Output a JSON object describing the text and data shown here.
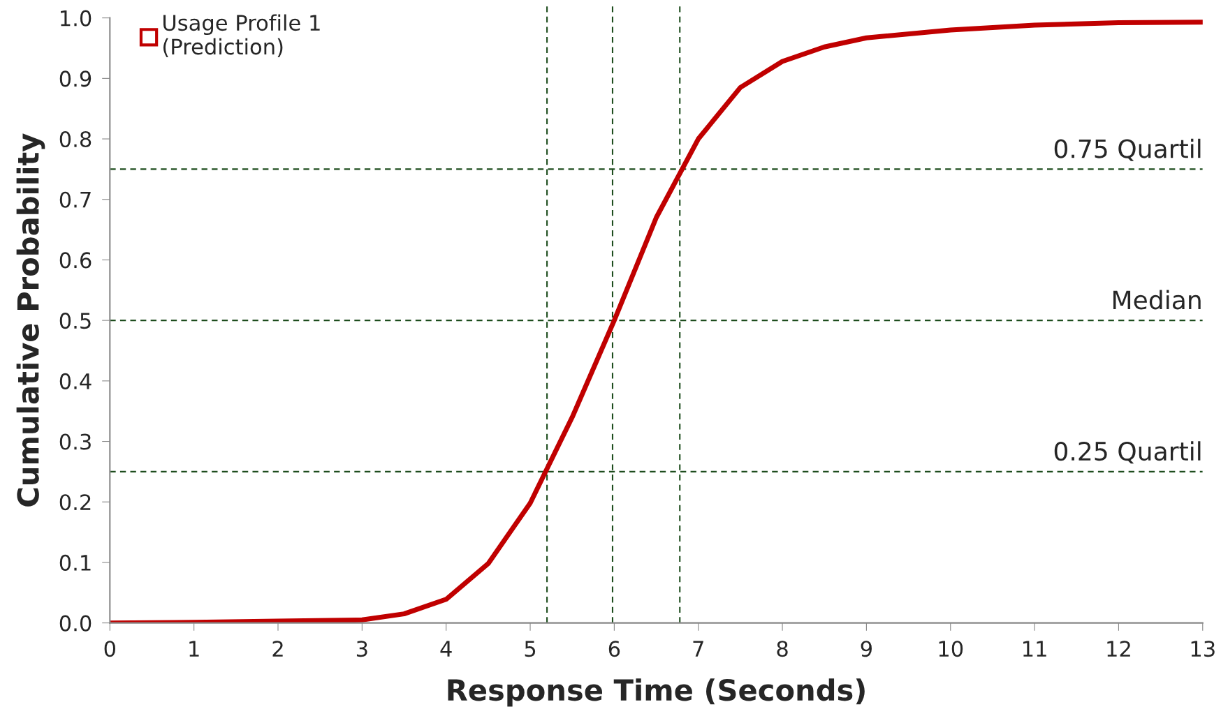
{
  "chart_data": {
    "type": "line",
    "xlabel": "Response Time (Seconds)",
    "ylabel": "Cumulative Probability",
    "x": [
      0,
      1,
      2,
      3,
      3.5,
      4,
      4.5,
      5,
      5.5,
      6,
      6.5,
      7,
      7.5,
      8,
      8.5,
      9,
      10,
      11,
      12,
      13
    ],
    "series": [
      {
        "name": "Usage Profile 1\n(Prediction)",
        "color": "#c00000",
        "values": [
          0,
          0.001,
          0.003,
          0.005,
          0.015,
          0.039,
          0.098,
          0.198,
          0.34,
          0.5,
          0.67,
          0.8,
          0.885,
          0.928,
          0.952,
          0.967,
          0.98,
          0.988,
          0.992,
          0.993
        ]
      }
    ],
    "xlim": [
      0,
      13
    ],
    "xticks": [
      0,
      1,
      2,
      3,
      4,
      5,
      6,
      7,
      8,
      9,
      10,
      11,
      12,
      13
    ],
    "ylim": [
      0,
      1.0
    ],
    "yticks": [
      {
        "value": 0,
        "label": "0.0"
      },
      {
        "value": 0.1,
        "label": "0.1"
      },
      {
        "value": 0.2,
        "label": "0.2"
      },
      {
        "value": 0.3,
        "label": "0.3"
      },
      {
        "value": 0.4,
        "label": "0.4"
      },
      {
        "value": 0.5,
        "label": "0.5"
      },
      {
        "value": 0.6,
        "label": "0.6"
      },
      {
        "value": 0.7,
        "label": "0.7"
      },
      {
        "value": 0.8,
        "label": "0.8"
      },
      {
        "value": 0.9,
        "label": "0.9"
      },
      {
        "value": 1.0,
        "label": "1.0"
      }
    ],
    "ref_lines": [
      {
        "axis": "y",
        "value": 0.75,
        "label": "0.75 Quartil",
        "color": "#1e4d1e",
        "line_style": "dashed"
      },
      {
        "axis": "y",
        "value": 0.5,
        "label": "Median",
        "color": "#1e4d1e",
        "line_style": "dashed"
      },
      {
        "axis": "y",
        "value": 0.25,
        "label": "0.25 Quartil",
        "color": "#1e4d1e",
        "line_style": "dashed"
      },
      {
        "axis": "x",
        "value": 5.2,
        "label": null,
        "color": "#1e4d1e",
        "line_style": "dashed"
      },
      {
        "axis": "x",
        "value": 5.98,
        "label": null,
        "color": "#1e4d1e",
        "line_style": "dashed"
      },
      {
        "axis": "x",
        "value": 6.78,
        "label": null,
        "color": "#1e4d1e",
        "line_style": "dashed"
      }
    ],
    "grid": false,
    "legend": "top left"
  }
}
